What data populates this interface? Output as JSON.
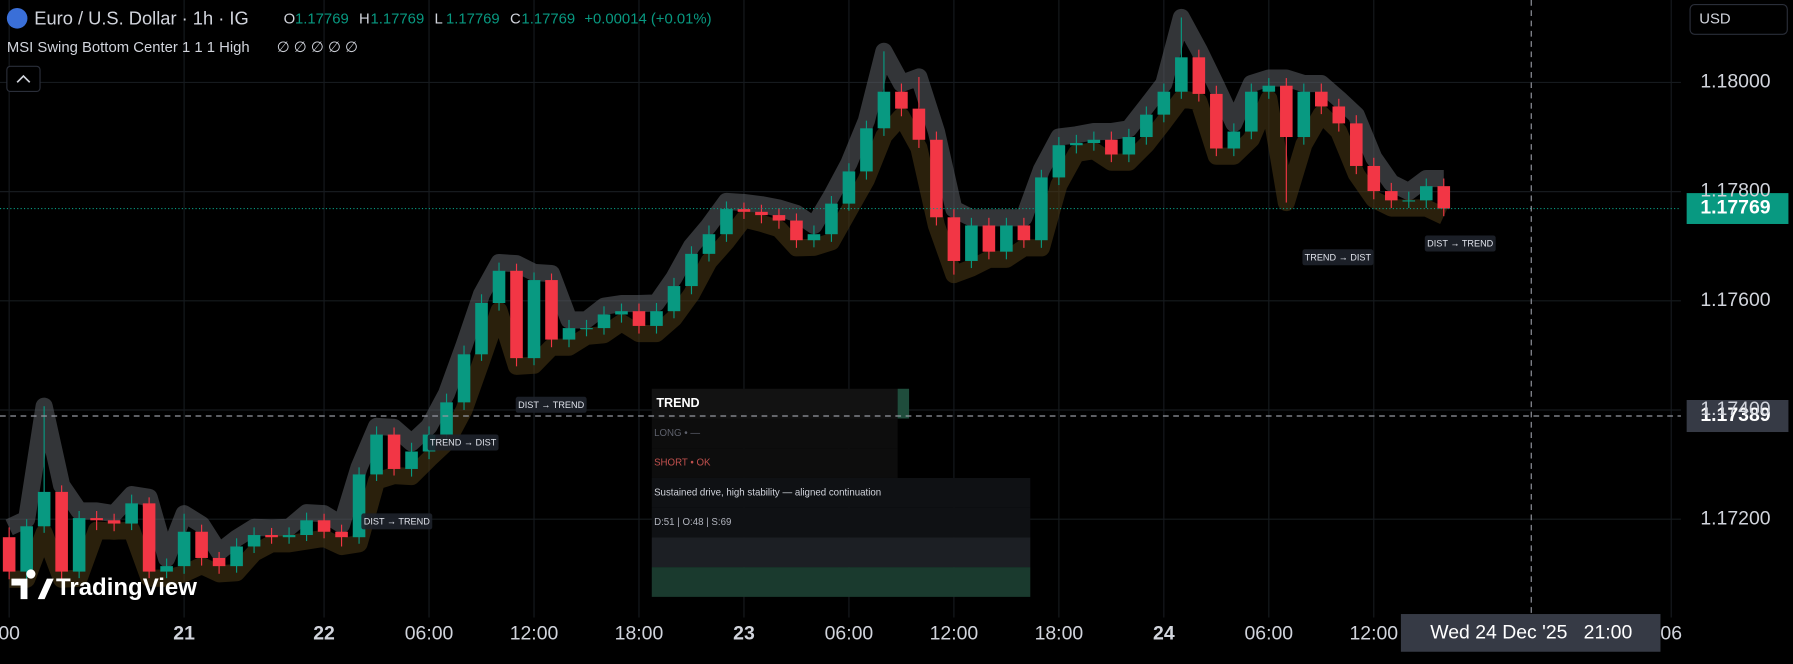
{
  "chart_data": {
    "type": "candlestick",
    "title": "Euro / U.S. Dollar · 1h · IG",
    "ohlc_legend": [
      {
        "label": "O",
        "value": 1.17769
      },
      {
        "label": "H",
        "value": 1.17769
      },
      {
        "label": "L",
        "value": 1.17769
      },
      {
        "label": "C",
        "value": 1.17769
      }
    ],
    "change": "+0.00014 (+0.01%)",
    "indicator": "MSI Swing Bottom Center 1 1 1 High",
    "indicator_values": "∅ ∅ ∅ ∅ ∅",
    "currency": "USD",
    "watermark": "TradingView",
    "up_color": "#089981",
    "down_color": "#f23645",
    "band_colors": [
      "#5d6066",
      "#4d3a16"
    ],
    "categories": [
      "00",
      null,
      null,
      null,
      null,
      null,
      null,
      null,
      null,
      null,
      "21",
      null,
      null,
      null,
      null,
      null,
      null,
      null,
      "22",
      null,
      null,
      null,
      null,
      null,
      "06:00",
      null,
      null,
      null,
      null,
      null,
      "12:00",
      null,
      null,
      null,
      null,
      null,
      "18:00",
      null,
      null,
      null,
      null,
      null,
      "23",
      null,
      null,
      null,
      null,
      null,
      "06:00",
      null,
      null,
      null,
      null,
      null,
      "12:00",
      null,
      null,
      null,
      null,
      null,
      "18:00",
      null,
      null,
      null,
      null,
      null,
      "24",
      null,
      null,
      null,
      null,
      null,
      "06:00",
      null,
      null,
      null,
      null,
      null,
      "12:00",
      null,
      null,
      null,
      null,
      null,
      null,
      null,
      null,
      null,
      null,
      null,
      null,
      null,
      null,
      null,
      null,
      "06"
    ],
    "open": [
      1.17167,
      1.17104,
      1.17187,
      1.1725,
      1.17104,
      1.17202,
      1.17198,
      1.17192,
      1.17229,
      1.17104,
      1.17114,
      1.17177,
      1.17129,
      1.17114,
      1.1715,
      1.17171,
      1.17167,
      1.17171,
      1.17198,
      1.17177,
      1.17167,
      1.17282,
      1.17355,
      1.17292,
      1.17324,
      1.17355,
      1.17414,
      1.17502,
      1.17596,
      1.17655,
      1.17495,
      1.17638,
      1.17529,
      1.1755,
      1.1755,
      1.17575,
      1.17581,
      1.17554,
      1.17581,
      1.17627,
      1.17686,
      1.17722,
      1.17768,
      1.17763,
      1.17757,
      1.17747,
      1.17711,
      1.17722,
      1.17778,
      1.17837,
      1.17916,
      1.17983,
      1.17952,
      1.17895,
      1.17753,
      1.17673,
      1.17738,
      1.1769,
      1.17738,
      1.17711,
      1.17826,
      1.17885,
      1.17889,
      1.17895,
      1.17868,
      1.179,
      1.17941,
      1.17983,
      1.18046,
      1.17979,
      1.17879,
      1.1791,
      1.17983,
      1.17994,
      1.179,
      1.17983,
      1.17956,
      1.17925,
      1.17847,
      1.17801,
      1.17784,
      1.17784,
      1.1781,
      null,
      null,
      null,
      null,
      null,
      null,
      null,
      null,
      null,
      null,
      null,
      null,
      null
    ],
    "high": [
      1.17185,
      1.172,
      1.17407,
      1.17262,
      1.17215,
      1.17215,
      1.1721,
      1.17245,
      1.1724,
      1.17128,
      1.1721,
      1.1719,
      1.1714,
      1.17165,
      1.17185,
      1.17184,
      1.17185,
      1.17212,
      1.1721,
      1.1719,
      1.17295,
      1.1737,
      1.17368,
      1.1734,
      1.1737,
      1.1743,
      1.17518,
      1.17612,
      1.1767,
      1.17668,
      1.17652,
      1.1765,
      1.17565,
      1.17565,
      1.1759,
      1.17595,
      1.17595,
      1.17596,
      1.17642,
      1.177,
      1.17738,
      1.17782,
      1.1778,
      1.17776,
      1.1777,
      1.1776,
      1.17738,
      1.17792,
      1.17852,
      1.1793,
      1.18057,
      1.17998,
      1.1801,
      1.1791,
      1.17768,
      1.17752,
      1.17752,
      1.17752,
      1.17752,
      1.1784,
      1.179,
      1.17904,
      1.1791,
      1.1791,
      1.17915,
      1.17956,
      1.17998,
      1.18119,
      1.1806,
      1.17994,
      1.17925,
      1.17998,
      1.18008,
      1.18008,
      1.17998,
      1.17998,
      1.1797,
      1.1794,
      1.17862,
      1.17816,
      1.178,
      1.17824,
      1.17824,
      null,
      null,
      null,
      null,
      null,
      null,
      null,
      null,
      null,
      null,
      null,
      null,
      null
    ],
    "low": [
      1.1709,
      1.1709,
      1.17175,
      1.1709,
      1.17092,
      1.1718,
      1.17178,
      1.1718,
      1.17092,
      1.17092,
      1.171,
      1.17115,
      1.171,
      1.17102,
      1.17138,
      1.17155,
      1.17155,
      1.1716,
      1.17165,
      1.1715,
      1.17155,
      1.1727,
      1.1728,
      1.17278,
      1.1731,
      1.1734,
      1.174,
      1.1749,
      1.17582,
      1.1748,
      1.17482,
      1.17515,
      1.17515,
      1.17535,
      1.17538,
      1.1756,
      1.1754,
      1.1754,
      1.17568,
      1.17612,
      1.17672,
      1.17708,
      1.1775,
      1.17742,
      1.17732,
      1.17697,
      1.17698,
      1.17708,
      1.17765,
      1.17822,
      1.17902,
      1.17938,
      1.1788,
      1.17738,
      1.17648,
      1.1766,
      1.17676,
      1.17676,
      1.17697,
      1.17697,
      1.17812,
      1.1787,
      1.17875,
      1.17854,
      1.17854,
      1.17886,
      1.17927,
      1.1797,
      1.17965,
      1.17865,
      1.17865,
      1.17896,
      1.1797,
      1.1778,
      1.17886,
      1.17942,
      1.1791,
      1.17832,
      1.17786,
      1.1777,
      1.1777,
      1.1777,
      1.17755,
      null,
      null,
      null,
      null,
      null,
      null,
      null,
      null,
      null,
      null,
      null,
      null,
      null
    ],
    "close": [
      1.17104,
      1.17187,
      1.1725,
      1.17104,
      1.17202,
      1.17198,
      1.17192,
      1.17229,
      1.17104,
      1.17114,
      1.17177,
      1.17129,
      1.17114,
      1.1715,
      1.17171,
      1.17167,
      1.17171,
      1.17198,
      1.17177,
      1.17167,
      1.17282,
      1.17355,
      1.17292,
      1.17324,
      1.17355,
      1.17414,
      1.17502,
      1.17596,
      1.17655,
      1.17495,
      1.17638,
      1.17529,
      1.1755,
      1.1755,
      1.17575,
      1.17581,
      1.17554,
      1.17581,
      1.17627,
      1.17686,
      1.17722,
      1.17768,
      1.17763,
      1.17757,
      1.17747,
      1.17711,
      1.17722,
      1.17778,
      1.17837,
      1.17916,
      1.17983,
      1.17952,
      1.17895,
      1.17753,
      1.17673,
      1.17738,
      1.1769,
      1.17738,
      1.17711,
      1.17826,
      1.17885,
      1.17889,
      1.17895,
      1.17868,
      1.179,
      1.17941,
      1.17983,
      1.18046,
      1.17979,
      1.17879,
      1.1791,
      1.17983,
      1.17994,
      1.179,
      1.17983,
      1.17956,
      1.17925,
      1.17847,
      1.17801,
      1.17784,
      1.17784,
      1.1781,
      1.17769,
      null,
      null,
      null,
      null,
      null,
      null,
      null,
      null,
      null,
      null,
      null,
      null,
      null
    ],
    "ylim": [
      1.1702,
      1.18151
    ],
    "yticks": [
      {
        "value": 1.172,
        "label": "1.17200"
      },
      {
        "value": 1.174,
        "label": "1.17400"
      },
      {
        "value": 1.176,
        "label": "1.17600"
      },
      {
        "value": 1.178,
        "label": "1.17800"
      },
      {
        "value": 1.18,
        "label": "1.18000"
      }
    ],
    "grid": true,
    "last_price": 1.17769,
    "crosshair": {
      "price": 1.17389,
      "time": "Wed 24 Dec '25   21:00"
    },
    "annotations": [
      "DIST → TREND",
      "TREND → DIST",
      "DIST → TREND",
      "TREND → DIST",
      "DIST → TREND"
    ],
    "panel": {
      "title": "TREND",
      "rows": [
        "LONG • —",
        "SHORT • OK",
        "Sustained drive, high stability — aligned continuation",
        "D:51 | O:48 | S:69"
      ]
    }
  }
}
